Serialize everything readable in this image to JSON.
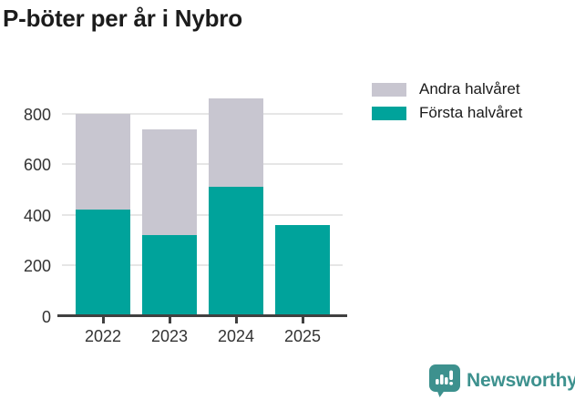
{
  "title": "P-böter per år i Nybro",
  "legend": {
    "items": [
      {
        "label": "Andra halvåret",
        "color": "#c8c6d0"
      },
      {
        "label": "Första halvåret",
        "color": "#00a39b"
      }
    ]
  },
  "chart_data": {
    "type": "bar",
    "stacked": true,
    "title": "P-böter per år i Nybro",
    "categories": [
      "2022",
      "2023",
      "2024",
      "2025"
    ],
    "series": [
      {
        "name": "Första halvåret",
        "color": "#00a39b",
        "values": [
          420,
          320,
          510,
          360
        ]
      },
      {
        "name": "Andra halvåret",
        "color": "#c8c6d0",
        "values": [
          380,
          420,
          350,
          0
        ]
      }
    ],
    "stack_totals": [
      800,
      740,
      860,
      360
    ],
    "yticks": [
      0,
      200,
      400,
      600,
      800
    ],
    "ylim": [
      0,
      908
    ],
    "xlabel": "",
    "ylabel": "",
    "grid": true,
    "legend_position": "top-right"
  },
  "logo": {
    "text": "Newsworthy",
    "color": "#3d918e",
    "icon": "bar-chart-speech-bubble"
  },
  "colors": {
    "bar_teal": "#00a39b",
    "bar_gray": "#c8c6d0",
    "grid": "#e6e6e6",
    "axis": "#404040",
    "tick_label": "#333333",
    "title": "#1c1c1c"
  }
}
